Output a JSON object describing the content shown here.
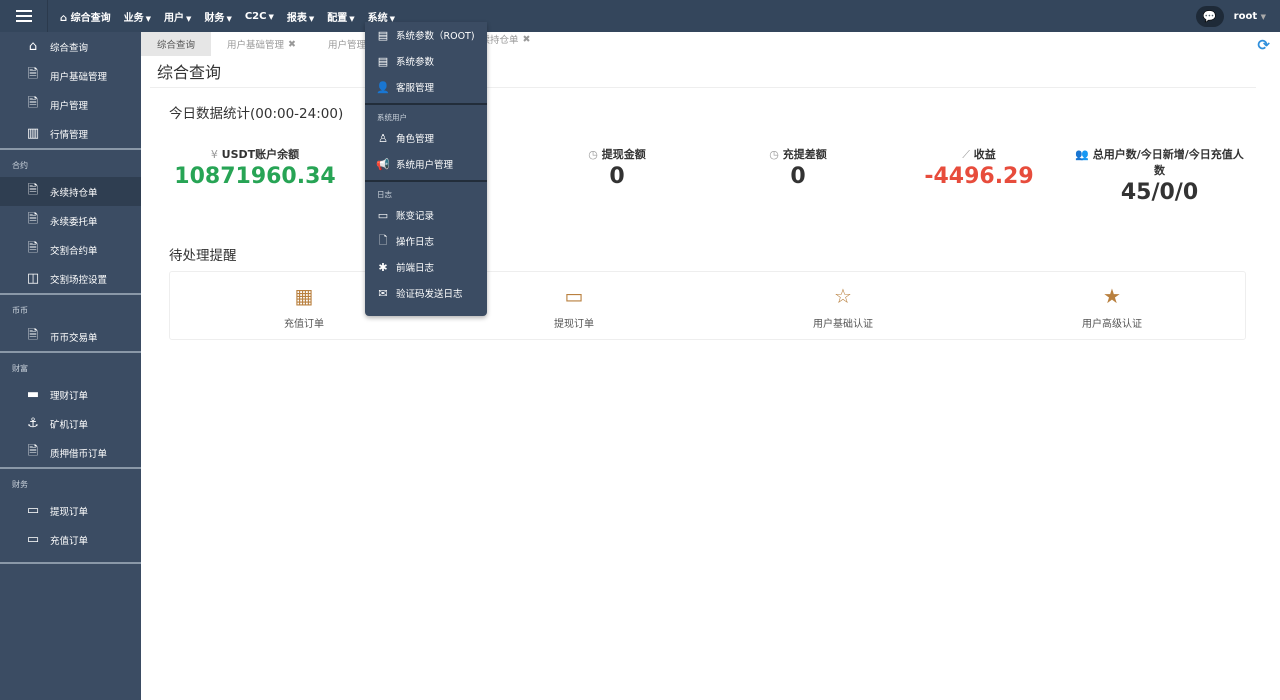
{
  "topbar": {
    "nav": [
      {
        "label": "综合查询",
        "icon": "home-icon"
      },
      {
        "label": "业务"
      },
      {
        "label": "用户"
      },
      {
        "label": "财务"
      },
      {
        "label": "C2C"
      },
      {
        "label": "报表"
      },
      {
        "label": "配置"
      },
      {
        "label": "系统"
      }
    ],
    "user": "root"
  },
  "sidebar": {
    "items": [
      "综合查询",
      "用户基础管理",
      "用户管理",
      "行情管理"
    ],
    "groups": [
      {
        "title": "合约",
        "items": [
          "永续持仓单",
          "永续委托单",
          "交割合约单",
          "交割场控设置"
        ]
      },
      {
        "title": "币币",
        "items": [
          "币币交易单"
        ]
      },
      {
        "title": "财富",
        "items": [
          "理财订单",
          "矿机订单",
          "质押借币订单"
        ]
      },
      {
        "title": "财务",
        "items": [
          "提现订单",
          "充值订单"
        ]
      }
    ]
  },
  "tabs": [
    {
      "label": "综合查询"
    },
    {
      "label": "用户基础管理"
    },
    {
      "label": "用户管理"
    },
    {
      "label": "永续持仓单"
    }
  ],
  "page": {
    "title": "综合查询",
    "stats_title": "今日数据统计(00:00-24:00)",
    "pending_title": "待处理提醒"
  },
  "stats": [
    {
      "label": "USDT账户余额",
      "icon": "¥",
      "value": "10871960.34",
      "color": "#27a455"
    },
    {
      "label": "提现金额",
      "icon": "◷",
      "value": "0",
      "color": "#333333"
    },
    {
      "label": "充提差额",
      "icon": "◷",
      "value": "0",
      "color": "#333333"
    },
    {
      "label": "收益",
      "icon": "⟋",
      "value": "-4496.29",
      "color": "#e74c3c"
    },
    {
      "label": "总用户数/今日新增/今日充值人数",
      "icon": "👥",
      "value": "45/0/0",
      "color": "#333333"
    }
  ],
  "pending": [
    {
      "label": "充值订单",
      "icon": "qrcode-icon"
    },
    {
      "label": "提现订单",
      "icon": "credit-card-icon"
    },
    {
      "label": "用户基础认证",
      "icon": "star-outline-icon"
    },
    {
      "label": "用户高级认证",
      "icon": "star-icon"
    }
  ],
  "dropdown": {
    "items1": [
      "系统参数（ROOT)",
      "系统参数",
      "客服管理"
    ],
    "header2": "系统用户",
    "items2": [
      "角色管理",
      "系统用户管理"
    ],
    "header3": "日志",
    "items3": [
      "账变记录",
      "操作日志",
      "前端日志",
      "验证码发送日志"
    ]
  }
}
